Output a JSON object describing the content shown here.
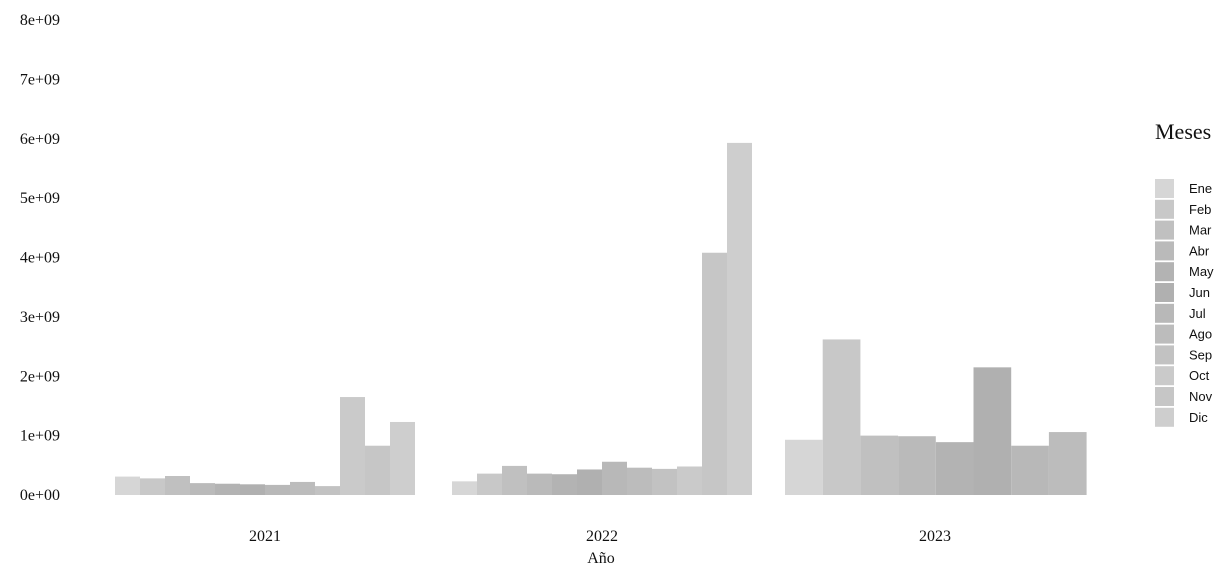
{
  "chart_data": {
    "type": "bar",
    "xlabel": "Año",
    "ylabel": "",
    "ylim": [
      0,
      8000000000
    ],
    "y_ticks": [
      0,
      1000000000,
      2000000000,
      3000000000,
      4000000000,
      5000000000,
      6000000000,
      7000000000,
      8000000000
    ],
    "y_tick_labels": [
      "0e+00",
      "1e+09",
      "2e+09",
      "3e+09",
      "4e+09",
      "5e+09",
      "6e+09",
      "7e+09",
      "8e+09"
    ],
    "grid": false,
    "legend_title": "Meses",
    "legend_position": "right",
    "months": [
      "Ene",
      "Feb",
      "Mar",
      "Abr",
      "May",
      "Jun",
      "Jul",
      "Ago",
      "Sep",
      "Oct",
      "Nov",
      "Dic"
    ],
    "month_colors": [
      "#d6d6d6",
      "#c8c8c8",
      "#c0c0c0",
      "#bababa",
      "#b3b3b3",
      "#b0b0b0",
      "#b8b8b8",
      "#bcbcbc",
      "#c2c2c2",
      "#cacaca",
      "#c6c6c6",
      "#cecece"
    ],
    "groups": [
      {
        "year": "2021",
        "values": [
          310000000,
          280000000,
          320000000,
          200000000,
          190000000,
          180000000,
          170000000,
          220000000,
          150000000,
          1650000000,
          830000000,
          1230000000
        ]
      },
      {
        "year": "2022",
        "values": [
          230000000,
          360000000,
          490000000,
          360000000,
          350000000,
          430000000,
          560000000,
          460000000,
          440000000,
          480000000,
          4080000000,
          5930000000
        ]
      },
      {
        "year": "2023",
        "values": [
          930000000,
          2620000000,
          1000000000,
          990000000,
          890000000,
          2150000000,
          830000000,
          1060000000
        ]
      }
    ]
  }
}
